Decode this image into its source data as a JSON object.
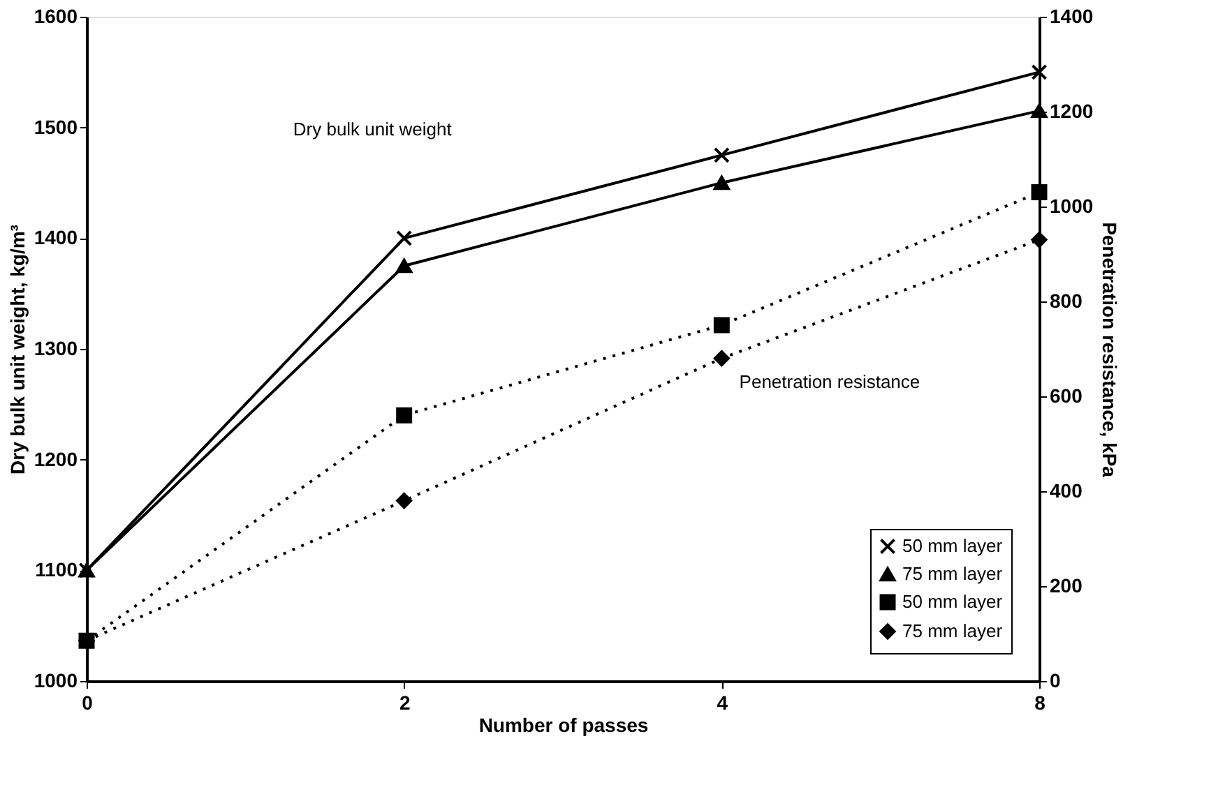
{
  "chart_data": {
    "type": "line",
    "categories": [
      "0",
      "2",
      "4",
      "8"
    ],
    "xlabel": "Number of passes",
    "ylabel": "Dry bulk unit weight, kg/m³",
    "y2label": "Penetration resistance, kPa",
    "ylim": [
      1000,
      1600
    ],
    "yticks": [
      1000,
      1100,
      1200,
      1300,
      1400,
      1500,
      1600
    ],
    "y2lim": [
      0,
      1400
    ],
    "y2ticks": [
      0,
      200,
      400,
      600,
      800,
      1000,
      1200,
      1400
    ],
    "series": [
      {
        "name": "50 mm layer",
        "color": "#000000",
        "marker": "cross",
        "line_style": "solid",
        "values": [
          1100,
          1400,
          1475,
          1550
        ]
      },
      {
        "name": "75 mm layer",
        "color": "#000000",
        "marker": "triangle",
        "line_style": "solid",
        "values": [
          1100,
          1375,
          1450,
          1515
        ]
      },
      {
        "name": "50 mm layer",
        "color": "#000000",
        "marker": "square",
        "line_style": "dotted",
        "axis": "y2",
        "values": [
          85,
          560,
          750,
          1030
        ]
      },
      {
        "name": "75 mm layer",
        "color": "#000000",
        "marker": "diamond",
        "line_style": "dotted",
        "axis": "y2",
        "values": [
          85,
          380,
          680,
          930
        ]
      }
    ],
    "annotations": [
      "Dry bulk unit weight",
      "Penetration resistance"
    ],
    "legend": "bottom right",
    "grid": false
  }
}
